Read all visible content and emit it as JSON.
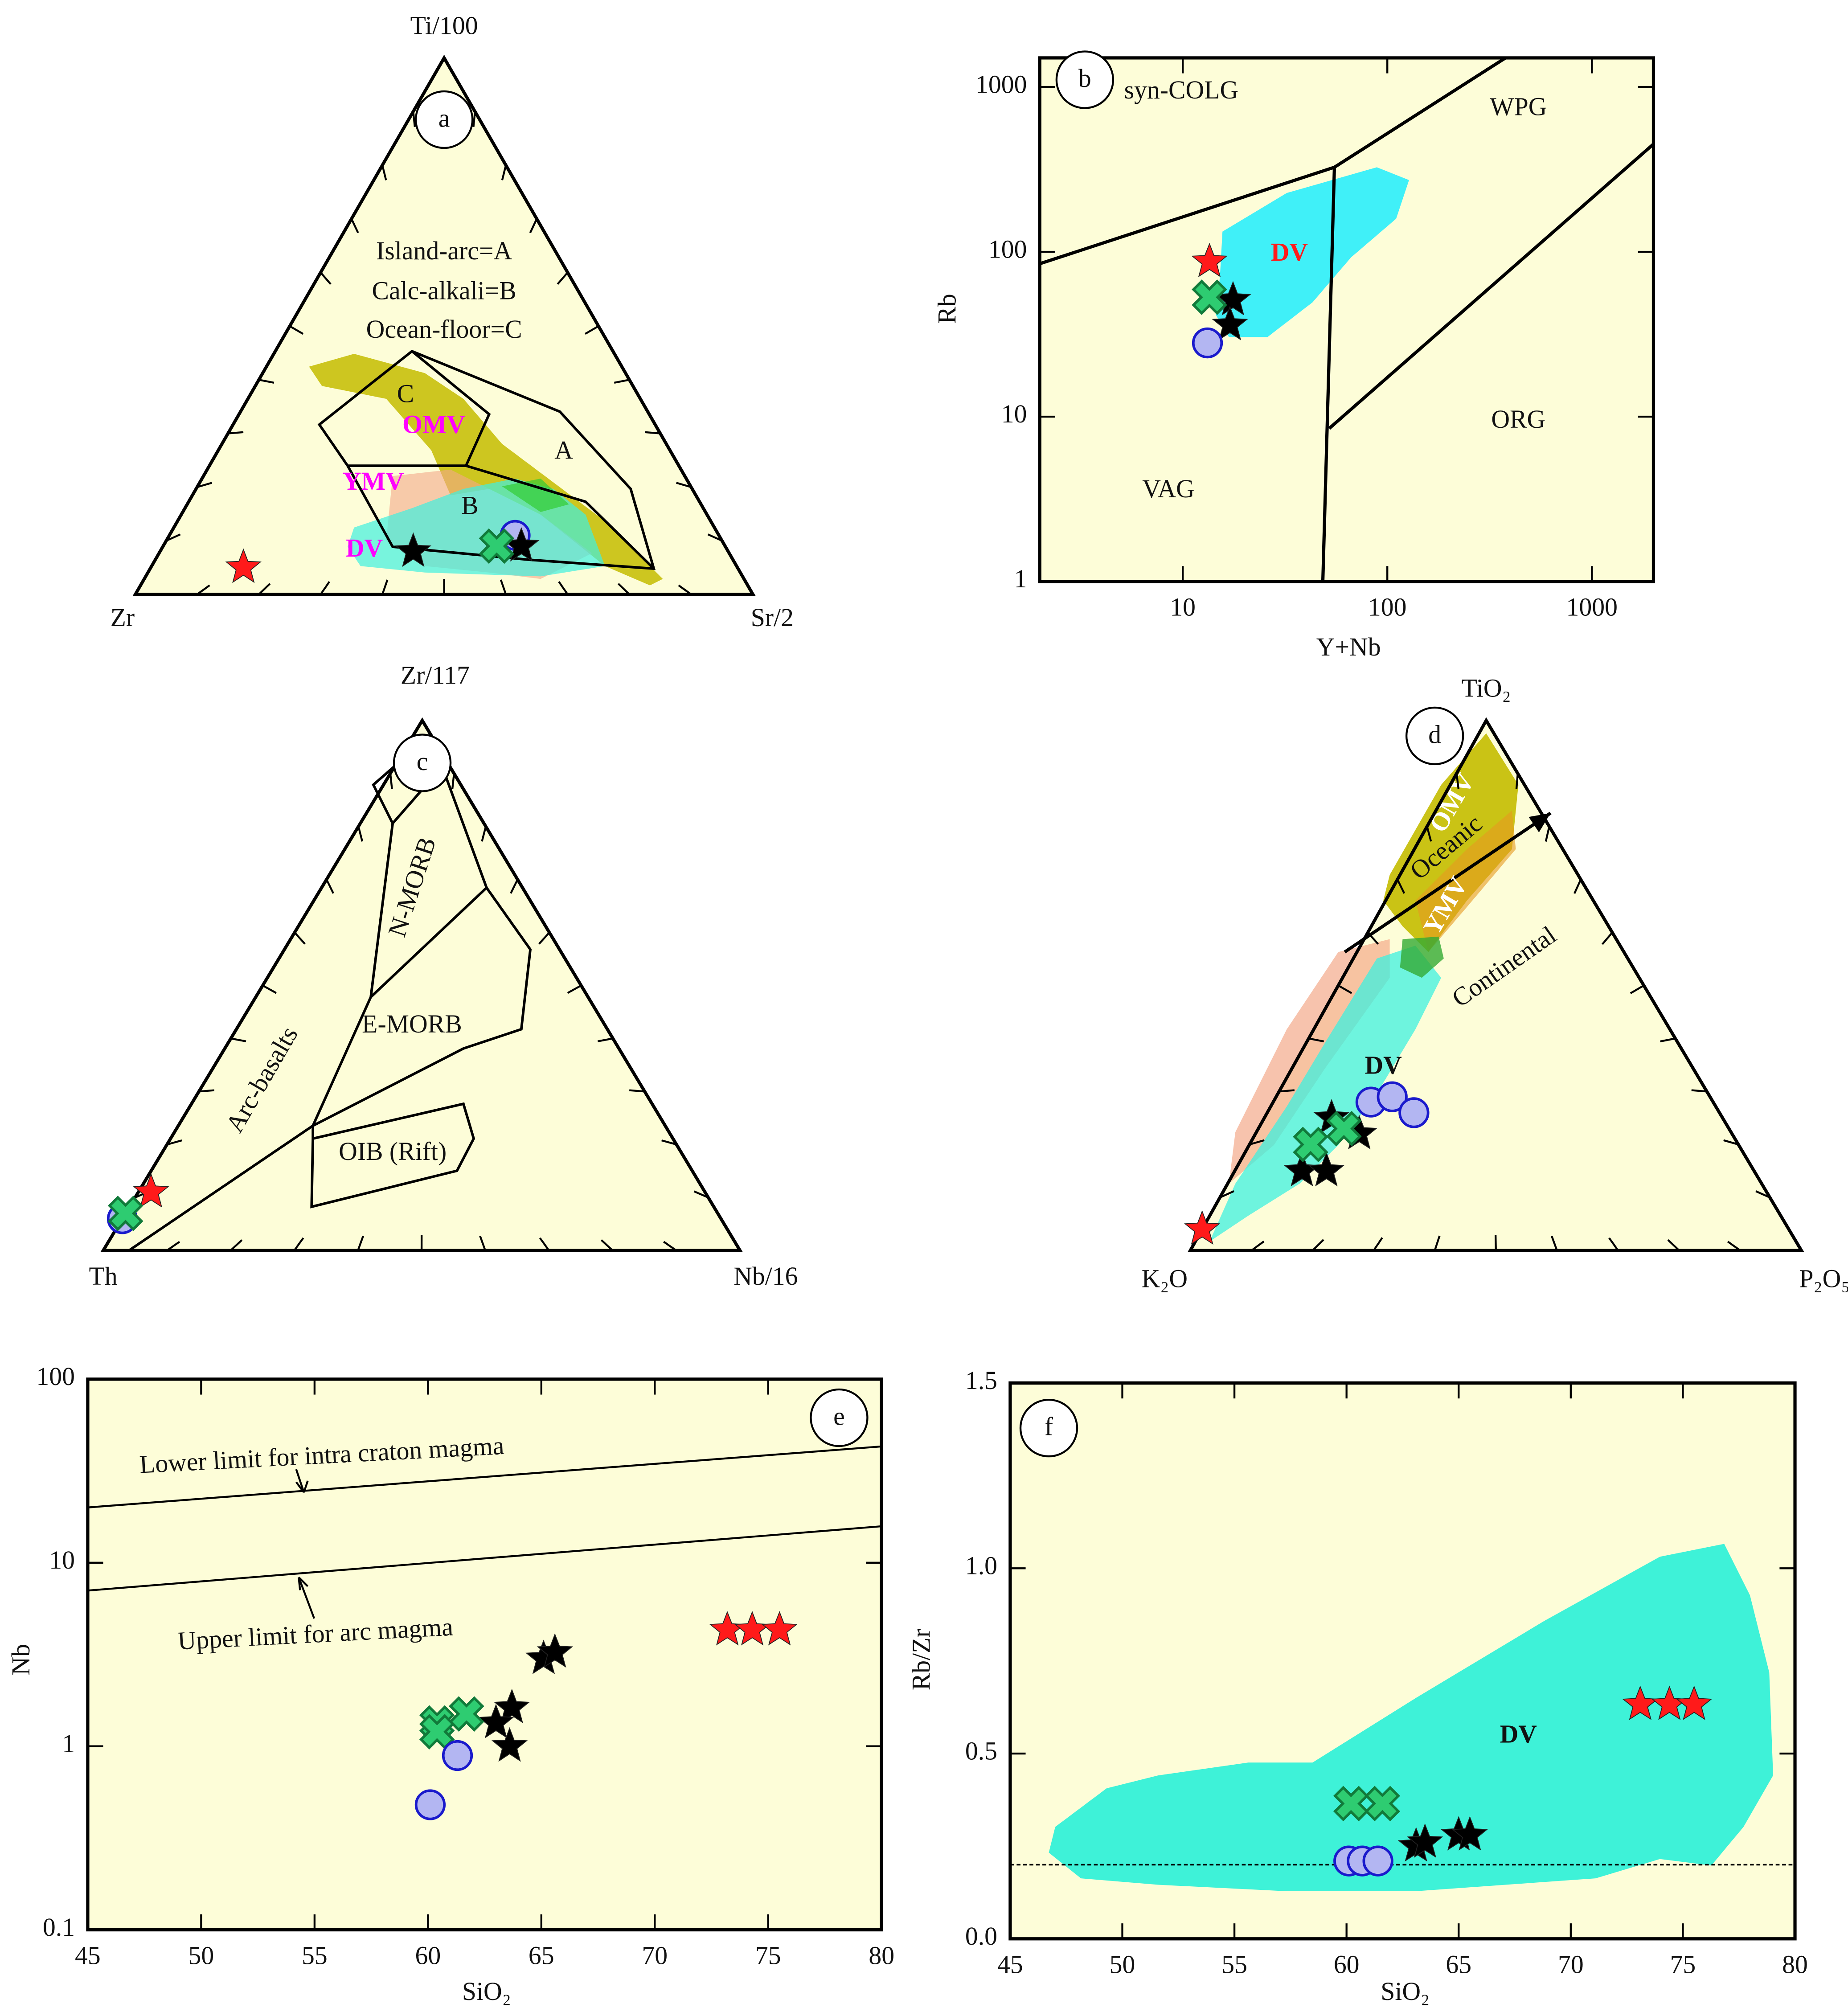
{
  "chart_data": [
    {
      "type": "ternary",
      "label": "a",
      "vertices": [
        "Ti/100",
        "Zr",
        "Sr/2"
      ],
      "annotations": [
        "Island-arc=A",
        "Calc-alkali=B",
        "Ocean-floor=C",
        "C",
        "A",
        "B",
        "OMV",
        "YMV",
        "DV"
      ],
      "ticks": [
        10,
        20,
        30,
        40,
        50,
        60,
        70,
        80,
        90
      ],
      "series": [
        {
          "marker": "star",
          "color": "#ff1a1a",
          "values": [
            [
              5,
              80,
              15
            ]
          ]
        },
        {
          "marker": "circle",
          "color": "#b3b6f2",
          "values": [
            [
              11,
              33,
              56
            ]
          ]
        },
        {
          "marker": "star",
          "color": "#000000",
          "values": [
            [
              8,
              51,
              41
            ],
            [
              9,
              33,
              58
            ]
          ]
        },
        {
          "marker": "cross",
          "color": "#2ecc71",
          "values": [
            [
              9,
              37,
              54
            ]
          ]
        }
      ]
    },
    {
      "type": "scatter",
      "label": "b",
      "xlabel": "Y+Nb",
      "ylabel": "Rb",
      "xscale": "log",
      "yscale": "log",
      "xlim": [
        2,
        2000
      ],
      "ylim": [
        1,
        1500
      ],
      "xticks": [
        10,
        100,
        1000
      ],
      "yticks": [
        1,
        10,
        100,
        1000
      ],
      "annotations": [
        "syn-COLG",
        "WPG",
        "VAG",
        "ORG",
        "DV"
      ],
      "series": [
        {
          "marker": "star",
          "color": "#ff1a1a",
          "x": [
            13.5
          ],
          "values": [
            87
          ]
        },
        {
          "marker": "star",
          "color": "#000000",
          "x": [
            17.6,
            17
          ],
          "values": [
            51,
            36
          ]
        },
        {
          "marker": "cross",
          "color": "#2ecc71",
          "x": [
            13.5
          ],
          "values": [
            53
          ]
        },
        {
          "marker": "circle",
          "color": "#b3b6f2",
          "x": [
            13.2
          ],
          "values": [
            28
          ]
        }
      ]
    },
    {
      "type": "ternary",
      "label": "c",
      "vertices": [
        "Zr/117",
        "Th",
        "Nb/16"
      ],
      "annotations": [
        "N-MORB",
        "E-MORB",
        "OIB (Rift)",
        "Arc-basalts"
      ],
      "ticks": [
        10,
        20,
        30,
        40,
        50,
        60,
        70,
        80,
        90
      ],
      "series": [
        {
          "marker": "circle",
          "color": "#b3b6f2",
          "values": [
            [
              6,
              94,
              0
            ]
          ]
        },
        {
          "marker": "star",
          "color": "#ff1a1a",
          "values": [
            [
              11,
              87,
              2
            ]
          ]
        },
        {
          "marker": "cross",
          "color": "#2ecc71",
          "values": [
            [
              7,
              93,
              0
            ]
          ]
        }
      ]
    },
    {
      "type": "ternary",
      "label": "d",
      "vertices": [
        "TiO₂",
        "K₂O",
        "P₂O₅"
      ],
      "annotations": [
        "Oceanic",
        "Continental",
        "OMV",
        "YMV",
        "DV"
      ],
      "ticks": [
        10,
        20,
        30,
        40,
        50,
        60,
        70,
        80,
        90
      ],
      "series": [
        {
          "marker": "star",
          "color": "#ff1a1a",
          "values": [
            [
              4,
              96,
              0
            ]
          ]
        },
        {
          "marker": "star",
          "color": "#000000",
          "values": [
            [
              15,
              74,
              11
            ],
            [
              15,
              70,
              15
            ],
            [
              22,
              61,
              17
            ],
            [
              25,
              64,
              11
            ]
          ]
        },
        {
          "marker": "cross",
          "color": "#2ecc71",
          "values": [
            [
              20,
              70,
              10
            ],
            [
              23,
              63,
              14
            ]
          ]
        },
        {
          "marker": "circle",
          "color": "#b3b6f2",
          "values": [
            [
              28,
              56,
              16
            ],
            [
              29,
              52,
              19
            ],
            [
              26,
              50,
              24
            ]
          ]
        }
      ]
    },
    {
      "type": "scatter",
      "label": "e",
      "xlabel": "SiO₂",
      "ylabel": "Nb",
      "yscale": "log",
      "xlim": [
        45,
        80
      ],
      "ylim": [
        0.1,
        100
      ],
      "xticks": [
        45,
        50,
        55,
        60,
        65,
        70,
        75,
        80
      ],
      "yticks": [
        0.1,
        1,
        10,
        100
      ],
      "lines": [
        {
          "label": "Lower limit for intra craton magma",
          "x": [
            45,
            80
          ],
          "values": [
            20,
            43
          ]
        },
        {
          "label": "Upper limit for arc magma",
          "x": [
            45,
            80
          ],
          "values": [
            7.05,
            15.8
          ]
        }
      ],
      "series": [
        {
          "marker": "star",
          "color": "#ff1a1a",
          "x": [
            73.2,
            74.3,
            75.5
          ],
          "values": [
            4.3,
            4.3,
            4.3
          ]
        },
        {
          "marker": "star",
          "color": "#000000",
          "x": [
            65.1,
            65.6,
            63.7,
            63.0,
            63.6
          ],
          "values": [
            3.0,
            3.25,
            1.62,
            1.34,
            1.0
          ]
        },
        {
          "marker": "cross",
          "color": "#2ecc71",
          "x": [
            60.4,
            61.7,
            60.4
          ],
          "values": [
            1.34,
            1.5,
            1.2
          ]
        },
        {
          "marker": "circle",
          "color": "#b3b6f2",
          "x": [
            61.3,
            60.1
          ],
          "values": [
            0.89,
            0.48
          ]
        }
      ]
    },
    {
      "type": "scatter",
      "label": "f",
      "xlabel": "SiO₂",
      "ylabel": "Rb/Zr",
      "xlim": [
        45,
        80
      ],
      "ylim": [
        0,
        1.5
      ],
      "xticks": [
        45,
        50,
        55,
        60,
        65,
        70,
        75,
        80
      ],
      "yticks": [
        {
          "value": 0,
          "label": "0.0"
        },
        0.5,
        {
          "value": 1,
          "label": "1.0"
        },
        1.5
      ],
      "hline": 0.2,
      "annotations": [
        "DV"
      ],
      "series": [
        {
          "marker": "star",
          "color": "#ff1a1a",
          "x": [
            73.1,
            74.4,
            75.5
          ],
          "values": [
            0.632,
            0.632,
            0.632
          ]
        },
        {
          "marker": "star",
          "color": "#000000",
          "x": [
            63.1,
            63.5,
            65.0,
            65.5
          ],
          "values": [
            0.25,
            0.26,
            0.28,
            0.28
          ]
        },
        {
          "marker": "cross",
          "color": "#2ecc71",
          "x": [
            60.2,
            61.6
          ],
          "values": [
            0.365,
            0.365
          ]
        },
        {
          "marker": "circle",
          "color": "#b3b6f2",
          "x": [
            60.1,
            60.7,
            61.4
          ],
          "values": [
            0.21,
            0.21,
            0.21
          ]
        }
      ]
    }
  ]
}
